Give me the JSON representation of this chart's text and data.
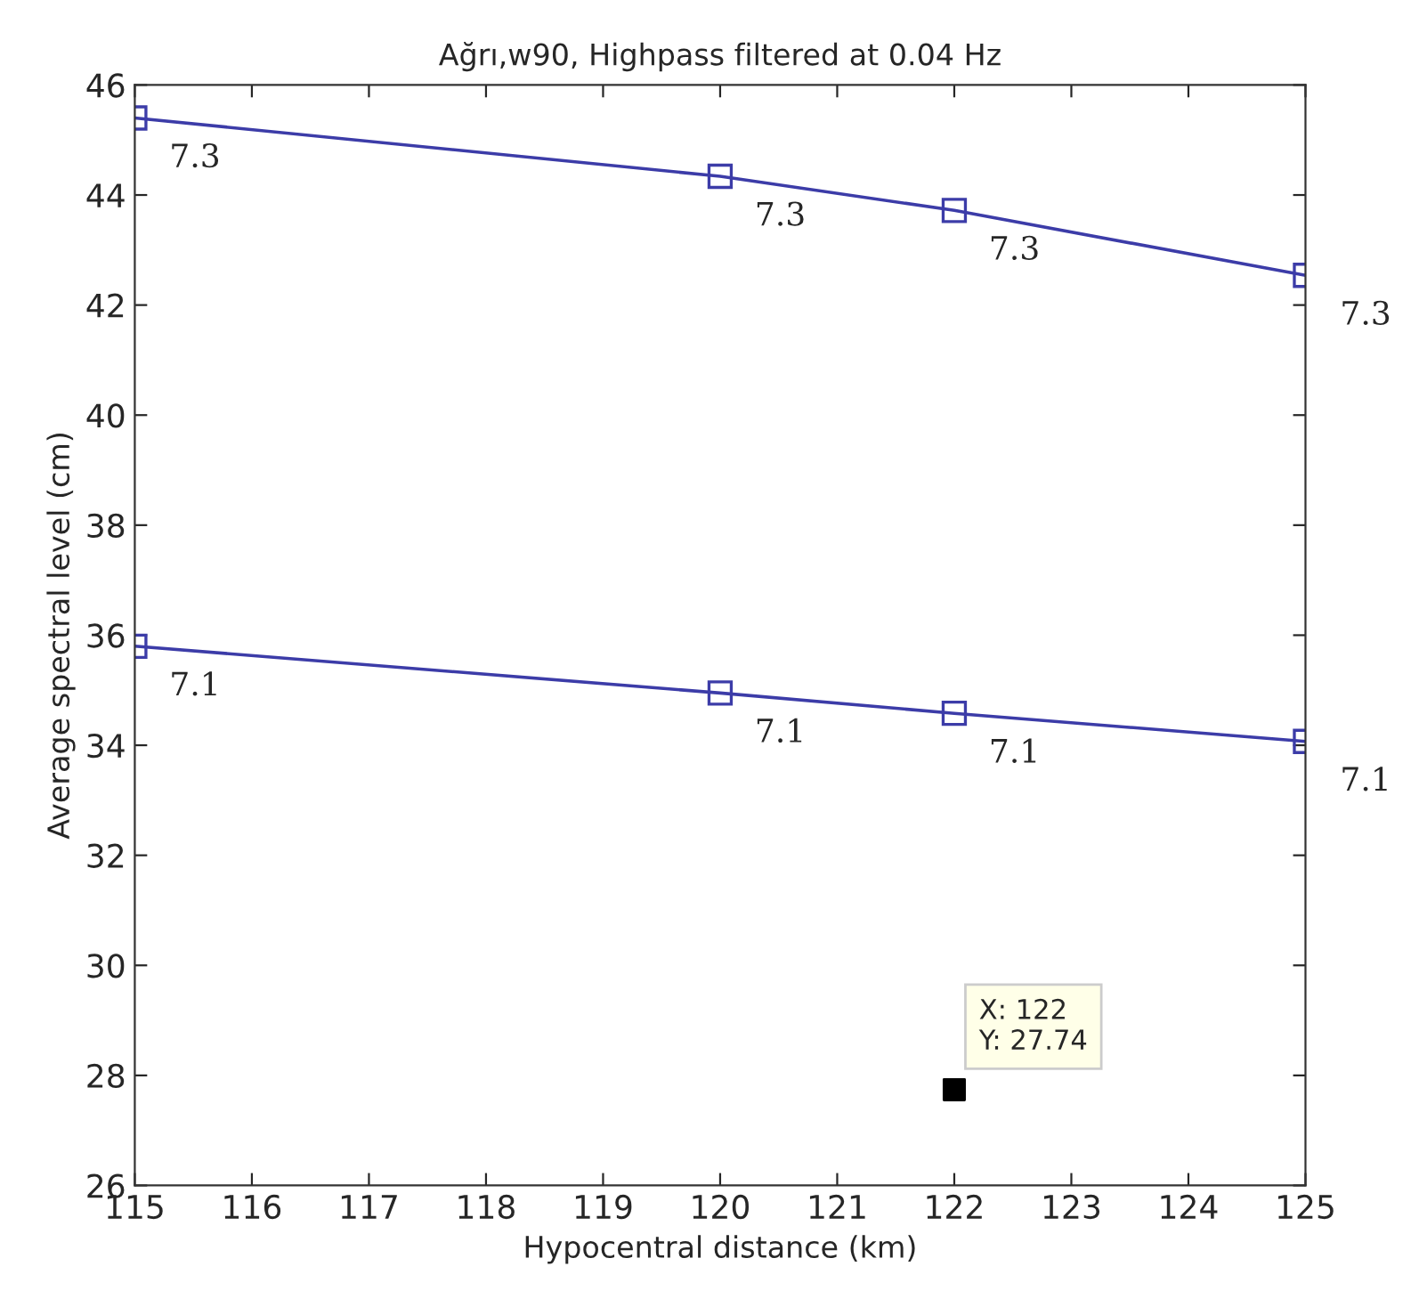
{
  "chart_data": {
    "type": "line",
    "title": "Ağrı,w90, Highpass filtered at 0.04 Hz",
    "xlabel": "Hypocentral distance (km)",
    "ylabel": "Average spectral level (cm)",
    "x": [
      115,
      120,
      122,
      125
    ],
    "series": [
      {
        "color": "#3c3ca8",
        "values": [
          45.4,
          44.34,
          43.72,
          42.54
        ],
        "marker": "square"
      },
      {
        "color": "#3c3ca8",
        "values": [
          35.8,
          34.95,
          34.58,
          34.07
        ],
        "marker": "square"
      },
      {
        "type": "scatter",
        "color": "#000000",
        "x": [
          122
        ],
        "values": [
          27.74
        ],
        "marker": "square"
      }
    ],
    "annotations": [
      {
        "text": "X: 122\nY: 27.74",
        "x": 122,
        "y": 27.74
      },
      {
        "text": "7.3",
        "x": 115,
        "y": 45.4
      },
      {
        "text": "7.3",
        "x": 120,
        "y": 44.34
      },
      {
        "text": "7.3",
        "x": 122,
        "y": 43.72
      },
      {
        "text": "7.3",
        "x": 125,
        "y": 42.54
      },
      {
        "text": "7.1",
        "x": 115,
        "y": 35.8
      },
      {
        "text": "7.1",
        "x": 120,
        "y": 34.95
      },
      {
        "text": "7.1",
        "x": 122,
        "y": 34.58
      },
      {
        "text": "7.1",
        "x": 125,
        "y": 34.07
      }
    ],
    "xlim": [
      115,
      125
    ],
    "xticks": [
      115,
      116,
      117,
      118,
      119,
      120,
      121,
      122,
      123,
      124,
      125
    ],
    "ylim": [
      26,
      46
    ],
    "yticks": [
      26,
      28,
      30,
      32,
      34,
      36,
      38,
      40,
      42,
      44,
      46
    ],
    "grid": false,
    "legend": false
  }
}
